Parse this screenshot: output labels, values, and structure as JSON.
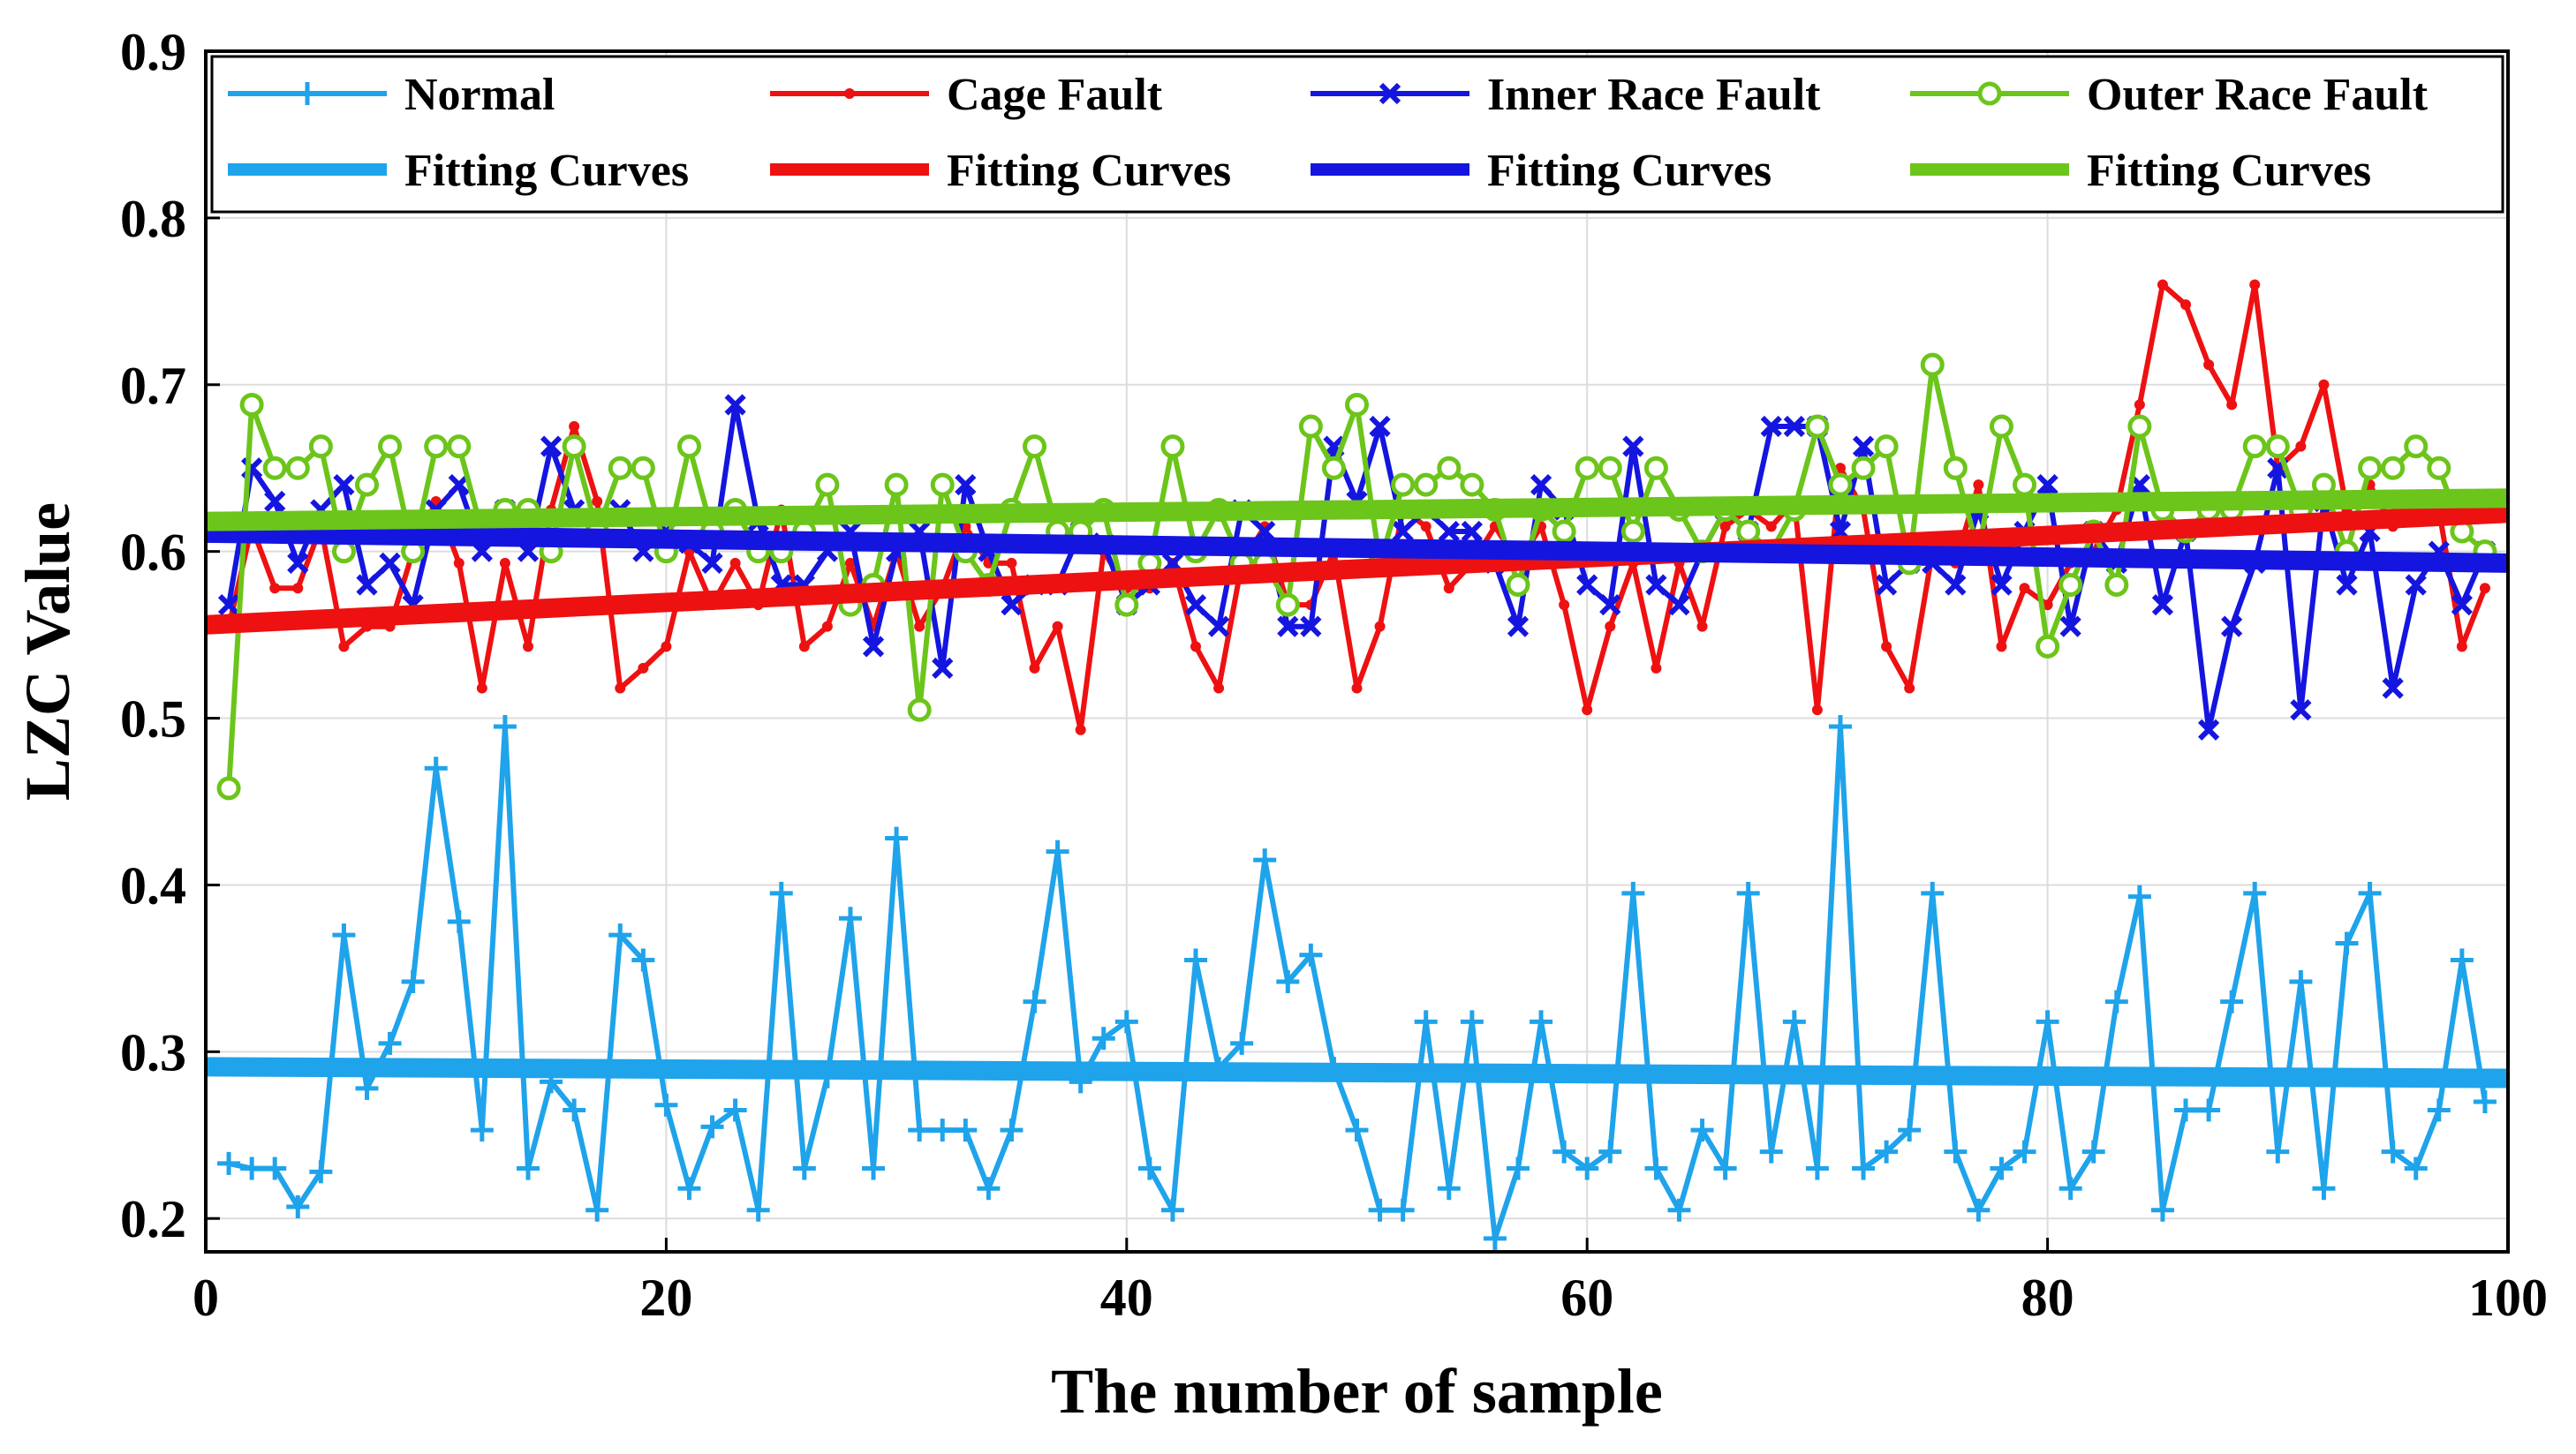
{
  "chart_data": {
    "type": "line",
    "xlabel": "The number of sample",
    "ylabel": "LZC Value",
    "xlim": [
      0,
      100
    ],
    "ylim": [
      0.18,
      0.9
    ],
    "xticks": [
      "0",
      "20",
      "40",
      "60",
      "80",
      "100"
    ],
    "yticks": [
      "0.2",
      "0.3",
      "0.4",
      "0.5",
      "0.6",
      "0.7",
      "0.8",
      "0.9"
    ],
    "grid": true,
    "legend_placement": "top",
    "series": [
      {
        "name": "Normal",
        "color": "#1fa3eb",
        "marker": "plus",
        "x": [
          1,
          2,
          3,
          4,
          5,
          6,
          7,
          8,
          9,
          10,
          11,
          12,
          13,
          14,
          15,
          16,
          17,
          18,
          19,
          20,
          21,
          22,
          23,
          24,
          25,
          26,
          27,
          28,
          29,
          30,
          31,
          32,
          33,
          34,
          35,
          36,
          37,
          38,
          39,
          40,
          41,
          42,
          43,
          44,
          45,
          46,
          47,
          48,
          49,
          50,
          51,
          52,
          53,
          54,
          55,
          56,
          57,
          58,
          59,
          60,
          61,
          62,
          63,
          64,
          65,
          66,
          67,
          68,
          69,
          70,
          71,
          72,
          73,
          74,
          75,
          76,
          77,
          78,
          79,
          80,
          81,
          82,
          83,
          84,
          85,
          86,
          87,
          88,
          89,
          90,
          91,
          92,
          93,
          94,
          95,
          96,
          97,
          98,
          99
        ],
        "values": [
          0.233,
          0.23,
          0.23,
          0.207,
          0.228,
          0.37,
          0.278,
          0.305,
          0.342,
          0.47,
          0.378,
          0.253,
          0.495,
          0.23,
          0.282,
          0.265,
          0.205,
          0.37,
          0.355,
          0.268,
          0.218,
          0.255,
          0.265,
          0.205,
          0.395,
          0.23,
          0.285,
          0.38,
          0.23,
          0.428,
          0.253,
          0.253,
          0.253,
          0.218,
          0.253,
          0.33,
          0.42,
          0.282,
          0.308,
          0.318,
          0.23,
          0.205,
          0.355,
          0.29,
          0.305,
          0.415,
          0.342,
          0.358,
          0.29,
          0.253,
          0.205,
          0.205,
          0.318,
          0.218,
          0.318,
          0.188,
          0.23,
          0.318,
          0.24,
          0.23,
          0.24,
          0.395,
          0.23,
          0.205,
          0.253,
          0.23,
          0.395,
          0.24,
          0.318,
          0.23,
          0.495,
          0.23,
          0.24,
          0.253,
          0.395,
          0.24,
          0.205,
          0.23,
          0.24,
          0.318,
          0.218,
          0.24,
          0.33,
          0.393,
          0.205,
          0.265,
          0.265,
          0.33,
          0.395,
          0.24,
          0.342,
          0.218,
          0.365,
          0.395,
          0.24,
          0.23,
          0.265,
          0.355,
          0.27
        ]
      },
      {
        "name": "Cage Fault",
        "color": "#ee1111",
        "marker": "dot",
        "x": [
          1,
          2,
          3,
          4,
          5,
          6,
          7,
          8,
          9,
          10,
          11,
          12,
          13,
          14,
          15,
          16,
          17,
          18,
          19,
          20,
          21,
          22,
          23,
          24,
          25,
          26,
          27,
          28,
          29,
          30,
          31,
          32,
          33,
          34,
          35,
          36,
          37,
          38,
          39,
          40,
          41,
          42,
          43,
          44,
          45,
          46,
          47,
          48,
          49,
          50,
          51,
          52,
          53,
          54,
          55,
          56,
          57,
          58,
          59,
          60,
          61,
          62,
          63,
          64,
          65,
          66,
          67,
          68,
          69,
          70,
          71,
          72,
          73,
          74,
          75,
          76,
          77,
          78,
          79,
          80,
          81,
          82,
          83,
          84,
          85,
          86,
          87,
          88,
          89,
          90,
          91,
          92,
          93,
          94,
          95,
          96,
          97,
          98,
          99
        ],
        "values": [
          0.555,
          0.615,
          0.578,
          0.578,
          0.615,
          0.543,
          0.555,
          0.555,
          0.6,
          0.63,
          0.593,
          0.518,
          0.593,
          0.543,
          0.625,
          0.675,
          0.63,
          0.518,
          0.53,
          0.543,
          0.6,
          0.568,
          0.593,
          0.568,
          0.625,
          0.543,
          0.555,
          0.593,
          0.555,
          0.6,
          0.555,
          0.578,
          0.615,
          0.593,
          0.593,
          0.53,
          0.555,
          0.493,
          0.6,
          0.578,
          0.578,
          0.593,
          0.543,
          0.518,
          0.593,
          0.615,
          0.568,
          0.568,
          0.6,
          0.518,
          0.555,
          0.625,
          0.615,
          0.578,
          0.593,
          0.615,
          0.593,
          0.615,
          0.568,
          0.505,
          0.555,
          0.593,
          0.53,
          0.593,
          0.555,
          0.615,
          0.625,
          0.615,
          0.63,
          0.505,
          0.65,
          0.625,
          0.543,
          0.518,
          0.6,
          0.593,
          0.64,
          0.543,
          0.578,
          0.568,
          0.593,
          0.6,
          0.625,
          0.688,
          0.76,
          0.748,
          0.712,
          0.688,
          0.76,
          0.65,
          0.663,
          0.7,
          0.625,
          0.64,
          0.615,
          0.625,
          0.625,
          0.543,
          0.578
        ]
      },
      {
        "name": "Inner Race Fault",
        "color": "#1515e0",
        "marker": "x",
        "x": [
          1,
          2,
          3,
          4,
          5,
          6,
          7,
          8,
          9,
          10,
          11,
          12,
          13,
          14,
          15,
          16,
          17,
          18,
          19,
          20,
          21,
          22,
          23,
          24,
          25,
          26,
          27,
          28,
          29,
          30,
          31,
          32,
          33,
          34,
          35,
          36,
          37,
          38,
          39,
          40,
          41,
          42,
          43,
          44,
          45,
          46,
          47,
          48,
          49,
          50,
          51,
          52,
          53,
          54,
          55,
          56,
          57,
          58,
          59,
          60,
          61,
          62,
          63,
          64,
          65,
          66,
          67,
          68,
          69,
          70,
          71,
          72,
          73,
          74,
          75,
          76,
          77,
          78,
          79,
          80,
          81,
          82,
          83,
          84,
          85,
          86,
          87,
          88,
          89,
          90,
          91,
          92,
          93,
          94,
          95,
          96,
          97,
          98,
          99
        ],
        "values": [
          0.568,
          0.65,
          0.63,
          0.593,
          0.625,
          0.64,
          0.58,
          0.593,
          0.568,
          0.625,
          0.64,
          0.6,
          0.625,
          0.6,
          0.663,
          0.625,
          0.612,
          0.625,
          0.6,
          0.612,
          0.605,
          0.593,
          0.688,
          0.618,
          0.58,
          0.58,
          0.6,
          0.612,
          0.543,
          0.6,
          0.612,
          0.53,
          0.64,
          0.6,
          0.568,
          0.58,
          0.58,
          0.612,
          0.605,
          0.568,
          0.58,
          0.593,
          0.568,
          0.555,
          0.625,
          0.612,
          0.555,
          0.555,
          0.663,
          0.63,
          0.675,
          0.612,
          0.625,
          0.612,
          0.612,
          0.593,
          0.555,
          0.64,
          0.625,
          0.58,
          0.568,
          0.663,
          0.58,
          0.568,
          0.6,
          0.625,
          0.612,
          0.675,
          0.675,
          0.675,
          0.612,
          0.663,
          0.58,
          0.593,
          0.593,
          0.58,
          0.625,
          0.58,
          0.612,
          0.64,
          0.555,
          0.612,
          0.593,
          0.64,
          0.568,
          0.612,
          0.493,
          0.555,
          0.593,
          0.65,
          0.505,
          0.63,
          0.58,
          0.612,
          0.518,
          0.58,
          0.6,
          0.568,
          0.6
        ]
      },
      {
        "name": "Outer Race Fault",
        "color": "#6cc51a",
        "marker": "circle",
        "x": [
          1,
          2,
          3,
          4,
          5,
          6,
          7,
          8,
          9,
          10,
          11,
          12,
          13,
          14,
          15,
          16,
          17,
          18,
          19,
          20,
          21,
          22,
          23,
          24,
          25,
          26,
          27,
          28,
          29,
          30,
          31,
          32,
          33,
          34,
          35,
          36,
          37,
          38,
          39,
          40,
          41,
          42,
          43,
          44,
          45,
          46,
          47,
          48,
          49,
          50,
          51,
          52,
          53,
          54,
          55,
          56,
          57,
          58,
          59,
          60,
          61,
          62,
          63,
          64,
          65,
          66,
          67,
          68,
          69,
          70,
          71,
          72,
          73,
          74,
          75,
          76,
          77,
          78,
          79,
          80,
          81,
          82,
          83,
          84,
          85,
          86,
          87,
          88,
          89,
          90,
          91,
          92,
          93,
          94,
          95,
          96,
          97,
          98,
          99
        ],
        "values": [
          0.458,
          0.688,
          0.65,
          0.65,
          0.663,
          0.6,
          0.64,
          0.663,
          0.6,
          0.663,
          0.663,
          0.612,
          0.625,
          0.625,
          0.6,
          0.663,
          0.612,
          0.65,
          0.65,
          0.6,
          0.663,
          0.612,
          0.625,
          0.6,
          0.6,
          0.612,
          0.64,
          0.568,
          0.58,
          0.64,
          0.505,
          0.64,
          0.6,
          0.58,
          0.625,
          0.663,
          0.612,
          0.612,
          0.625,
          0.568,
          0.593,
          0.663,
          0.6,
          0.625,
          0.593,
          0.593,
          0.568,
          0.675,
          0.65,
          0.688,
          0.593,
          0.64,
          0.64,
          0.65,
          0.64,
          0.625,
          0.58,
          0.625,
          0.612,
          0.65,
          0.65,
          0.612,
          0.65,
          0.625,
          0.6,
          0.625,
          0.612,
          0.6,
          0.625,
          0.675,
          0.64,
          0.65,
          0.663,
          0.593,
          0.712,
          0.65,
          0.6,
          0.675,
          0.64,
          0.543,
          0.58,
          0.612,
          0.58,
          0.675,
          0.625,
          0.612,
          0.625,
          0.625,
          0.663,
          0.663,
          0.625,
          0.64,
          0.6,
          0.65,
          0.65,
          0.663,
          0.65,
          0.612,
          0.6
        ]
      }
    ],
    "fitting_curves": [
      {
        "name": "Fitting Curves",
        "color": "#1fa3eb",
        "x": [
          0,
          100
        ],
        "values": [
          0.291,
          0.284
        ]
      },
      {
        "name": "Fitting Curves",
        "color": "#ee1111",
        "x": [
          0,
          100
        ],
        "values": [
          0.556,
          0.623
        ]
      },
      {
        "name": "Fitting Curves",
        "color": "#1515e0",
        "x": [
          0,
          100
        ],
        "values": [
          0.611,
          0.593
        ]
      },
      {
        "name": "Fitting Curves",
        "color": "#6cc51a",
        "x": [
          0,
          100
        ],
        "values": [
          0.618,
          0.632
        ]
      }
    ]
  }
}
